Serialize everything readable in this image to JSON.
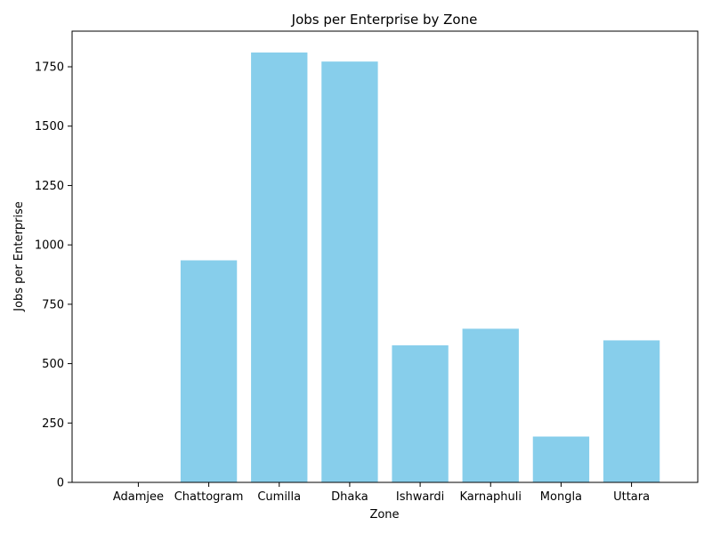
{
  "chart_data": {
    "type": "bar",
    "title": "Jobs per Enterprise by Zone",
    "xlabel": "Zone",
    "ylabel": "Jobs per Enterprise",
    "categories": [
      "Adamjee",
      "Chattogram",
      "Cumilla",
      "Dhaka",
      "Ishwardi",
      "Karnaphuli",
      "Mongla",
      "Uttara"
    ],
    "values": [
      0,
      935,
      1810,
      1772,
      577,
      647,
      193,
      598
    ],
    "ylim": [
      0,
      1900
    ],
    "yticks": [
      0,
      250,
      500,
      750,
      1000,
      1250,
      1500,
      1750
    ],
    "grid": false,
    "bar_color": "#87CEEB"
  }
}
